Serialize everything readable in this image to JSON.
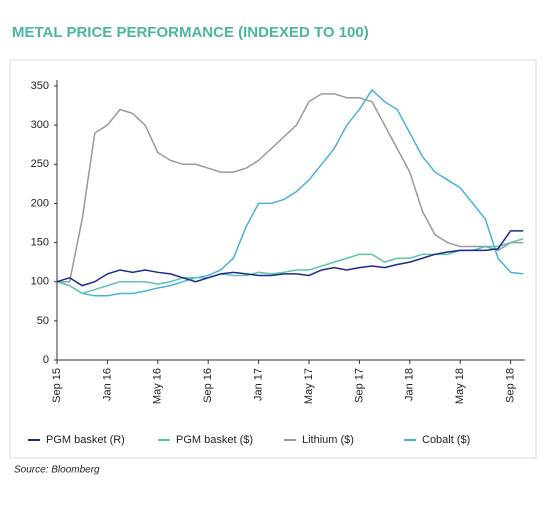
{
  "chart_data": {
    "type": "line",
    "title": "METAL PRICE PERFORMANCE (INDEXED TO 100)",
    "source": "Source: Bloomberg",
    "categories": [
      "Sep 15",
      null,
      null,
      null,
      "Jan 16",
      null,
      null,
      null,
      "May 16",
      null,
      null,
      null,
      "Sep 16",
      null,
      null,
      null,
      "Jan 17",
      null,
      null,
      null,
      "May 17",
      null,
      null,
      null,
      "Sep 17",
      null,
      null,
      null,
      "Jan 18",
      null,
      null,
      null,
      "May 18",
      null,
      null,
      null,
      "Sep 18",
      null
    ],
    "ylim": [
      0,
      350
    ],
    "yticks": [
      0,
      50,
      100,
      150,
      200,
      250,
      300,
      350
    ],
    "grid": false,
    "legend": "bottom",
    "series": [
      {
        "name": "PGM basket (R)",
        "color": "#1b2a8c",
        "values": [
          100,
          105,
          95,
          100,
          110,
          115,
          112,
          115,
          112,
          110,
          105,
          100,
          105,
          110,
          112,
          110,
          108,
          108,
          110,
          110,
          108,
          115,
          118,
          115,
          118,
          120,
          118,
          122,
          125,
          130,
          135,
          138,
          140,
          140,
          140,
          142,
          165,
          165
        ]
      },
      {
        "name": "PGM basket ($)",
        "color": "#5fc2ad",
        "values": [
          100,
          95,
          85,
          90,
          95,
          100,
          100,
          100,
          97,
          100,
          105,
          105,
          105,
          110,
          108,
          108,
          112,
          110,
          112,
          115,
          115,
          120,
          125,
          130,
          135,
          135,
          125,
          130,
          130,
          135,
          135,
          135,
          140,
          140,
          145,
          145,
          150,
          155
        ]
      },
      {
        "name": "Lithium ($)",
        "color": "#9a9a9a",
        "values": [
          100,
          100,
          180,
          290,
          300,
          320,
          315,
          300,
          265,
          255,
          250,
          250,
          245,
          240,
          240,
          245,
          255,
          270,
          285,
          300,
          330,
          340,
          340,
          335,
          335,
          330,
          300,
          270,
          240,
          190,
          160,
          150,
          145,
          145,
          145,
          140,
          150,
          150
        ]
      },
      {
        "name": "Cobalt ($)",
        "color": "#4bb1da",
        "values": [
          100,
          95,
          85,
          82,
          82,
          85,
          85,
          88,
          92,
          95,
          100,
          105,
          108,
          115,
          130,
          170,
          200,
          200,
          205,
          215,
          230,
          250,
          270,
          300,
          320,
          345,
          330,
          320,
          290,
          260,
          240,
          230,
          220,
          200,
          180,
          130,
          112,
          110
        ]
      }
    ]
  }
}
